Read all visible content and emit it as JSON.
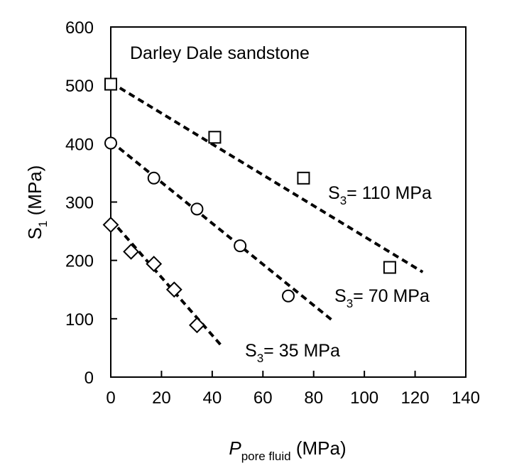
{
  "chart_data": {
    "type": "scatter",
    "title": "",
    "annotation_title": "Darley Dale sandstone",
    "xlabel": {
      "main": "P",
      "subscript": "pore fluid",
      "unit": "(MPa)"
    },
    "ylabel": {
      "main": "S",
      "subscript": "1",
      "unit": "(MPa)"
    },
    "xlim": [
      0,
      140
    ],
    "ylim": [
      0,
      600
    ],
    "x_ticks": [
      "0",
      "20",
      "40",
      "60",
      "80",
      "100",
      "120",
      "140"
    ],
    "y_ticks": [
      "0",
      "100",
      "200",
      "300",
      "400",
      "500",
      "600"
    ],
    "grid": false,
    "series": [
      {
        "label": {
          "main": "S",
          "subscript": "3",
          "rest": "= 110 MPa"
        },
        "marker": "square",
        "points": [
          [
            0,
            502
          ],
          [
            41,
            411
          ],
          [
            76,
            341
          ],
          [
            110,
            188
          ]
        ],
        "fit": [
          [
            0,
            505
          ],
          [
            123,
            180
          ]
        ]
      },
      {
        "label": {
          "main": "S",
          "subscript": "3",
          "rest": "= 70 MPa"
        },
        "marker": "circle",
        "points": [
          [
            0,
            401
          ],
          [
            17,
            341
          ],
          [
            34,
            288
          ],
          [
            51,
            225
          ],
          [
            70,
            139
          ]
        ],
        "fit": [
          [
            0,
            404
          ],
          [
            88,
            95
          ]
        ]
      },
      {
        "label": {
          "main": "S",
          "subscript": "3",
          "rest": "= 35 MPa"
        },
        "marker": "diamond",
        "points": [
          [
            0,
            261
          ],
          [
            8,
            215
          ],
          [
            17,
            194
          ],
          [
            25,
            150
          ],
          [
            34,
            89
          ]
        ],
        "fit": [
          [
            0,
            270
          ],
          [
            44,
            52
          ]
        ]
      }
    ]
  }
}
